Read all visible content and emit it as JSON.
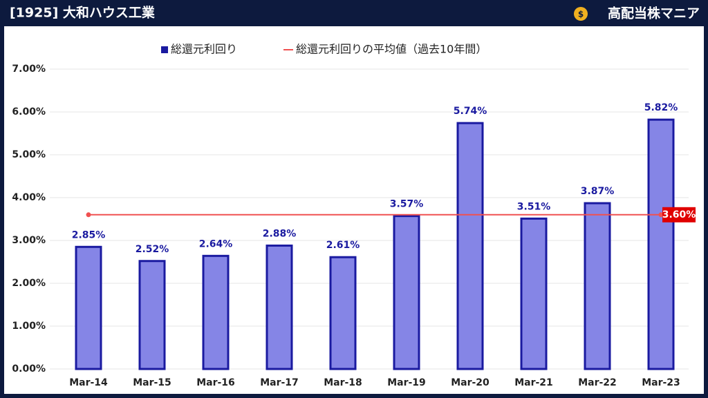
{
  "header": {
    "title": "[1925] 大和ハウス工業",
    "brand": "高配当株マニア"
  },
  "chart_data": {
    "type": "bar",
    "categories": [
      "Mar-14",
      "Mar-15",
      "Mar-16",
      "Mar-17",
      "Mar-18",
      "Mar-19",
      "Mar-20",
      "Mar-21",
      "Mar-22",
      "Mar-23"
    ],
    "series": [
      {
        "name": "総還元利回り",
        "color": "#8585e6",
        "values": [
          2.85,
          2.52,
          2.64,
          2.88,
          2.61,
          3.57,
          5.74,
          3.51,
          3.87,
          5.82
        ],
        "value_labels": [
          "2.85%",
          "2.52%",
          "2.64%",
          "2.88%",
          "2.61%",
          "3.57%",
          "5.74%",
          "3.51%",
          "3.87%",
          "5.82%"
        ]
      }
    ],
    "average": {
      "name": "総還元利回りの平均値（過去10年間）",
      "color": "#f05050",
      "value": 3.6,
      "value_label": "3.60%"
    },
    "ylim": [
      0,
      7
    ],
    "yticks": [
      {
        "value": 0,
        "label": "0.00%"
      },
      {
        "value": 1,
        "label": "1.00%"
      },
      {
        "value": 2,
        "label": "2.00%"
      },
      {
        "value": 3,
        "label": "3.00%"
      },
      {
        "value": 4,
        "label": "4.00%"
      },
      {
        "value": 5,
        "label": "5.00%"
      },
      {
        "value": 6,
        "label": "6.00%"
      },
      {
        "value": 7,
        "label": "7.00%"
      }
    ],
    "grid": true
  }
}
